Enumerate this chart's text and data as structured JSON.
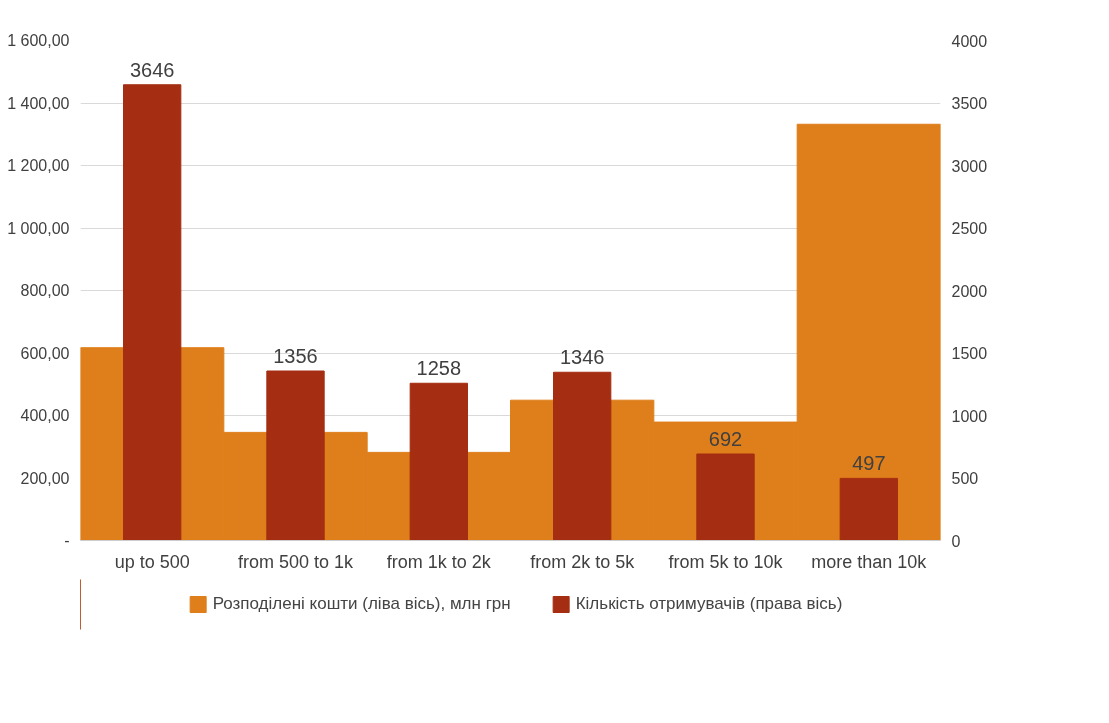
{
  "chart_data": {
    "type": "bar",
    "categories": [
      "up to 500",
      "from 500 to 1k",
      "from 1k to 2k",
      "from 2k to 5k",
      "from 5k to 10k",
      "more than 10k"
    ],
    "series": [
      {
        "name": "Розподілені кошти (ліва вісь), млн грн",
        "color": "#de7f1b",
        "values": [
          617,
          346,
          282,
          449,
          379,
          1332
        ]
      },
      {
        "name": "Кількість отримувачів (права вісь)",
        "color": "#a52d11",
        "values": [
          3646,
          1356,
          1258,
          1346,
          692,
          497
        ],
        "axis": "y2",
        "value_labels": [
          "3646",
          "1356",
          "1258",
          "1346",
          "692",
          "497"
        ]
      }
    ],
    "ylim": [
      0,
      1600
    ],
    "yticks": [
      {
        "value": 0,
        "label": "-"
      },
      {
        "value": 200,
        "label": "200,00"
      },
      {
        "value": 400,
        "label": "400,00"
      },
      {
        "value": 600,
        "label": "600,00"
      },
      {
        "value": 800,
        "label": "800,00"
      },
      {
        "value": 1000,
        "label": "1 000,00"
      },
      {
        "value": 1200,
        "label": "1 200,00"
      },
      {
        "value": 1400,
        "label": "1 400,00"
      },
      {
        "value": 1600,
        "label": "1 600,00"
      }
    ],
    "y2lim": [
      0,
      4000
    ],
    "y2ticks": [
      0,
      500,
      1000,
      1500,
      2000,
      2500,
      3000,
      3500,
      4000
    ],
    "grid": "y",
    "legend": "bottom"
  }
}
